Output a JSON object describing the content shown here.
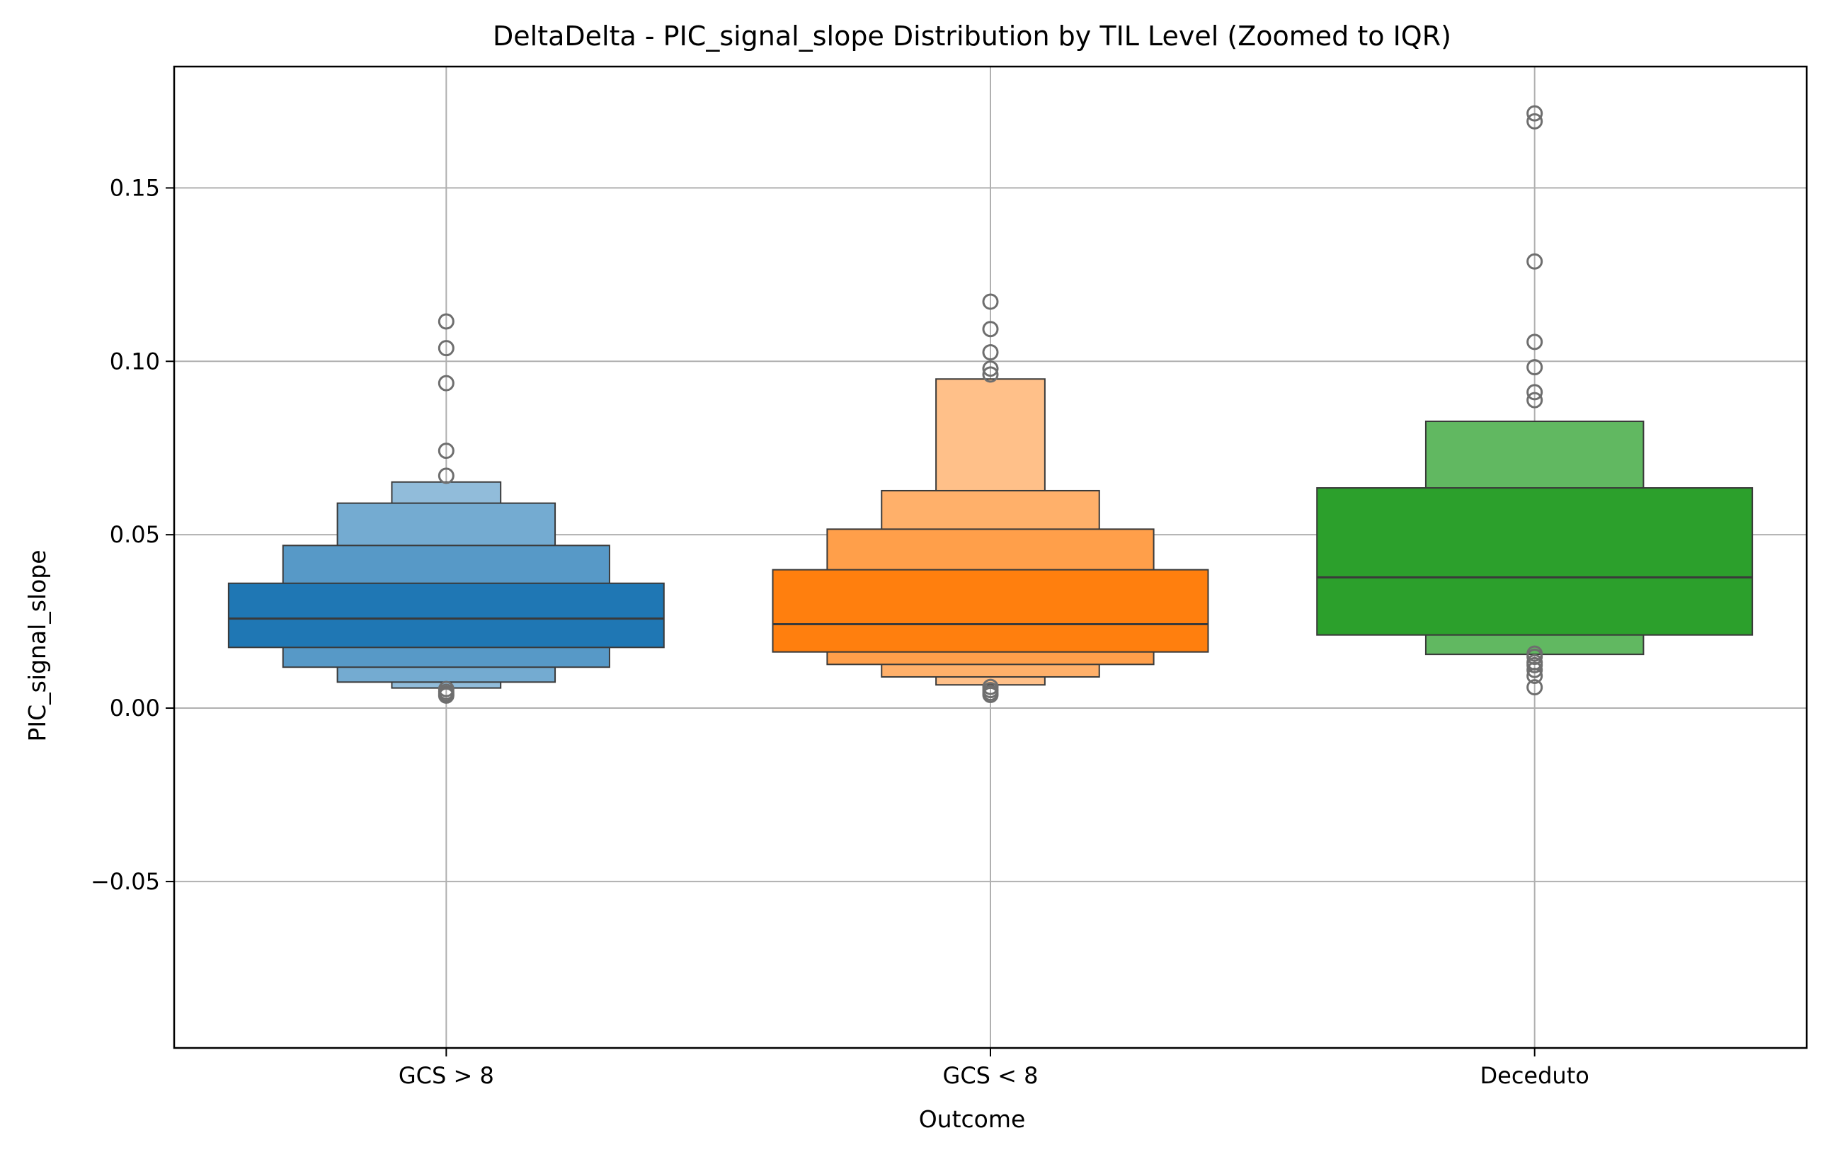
{
  "chart_data": {
    "type": "boxen",
    "title": "DeltaDelta - PIC_signal_slope Distribution by TIL Level (Zoomed to IQR)",
    "xlabel": "Outcome",
    "ylabel": "PIC_signal_slope",
    "ylim": [
      -0.098,
      0.185
    ],
    "yticks": [
      -0.05,
      0.0,
      0.05,
      0.1,
      0.15
    ],
    "ytick_labels": [
      "−0.05",
      "0.00",
      "0.05",
      "0.10",
      "0.15"
    ],
    "grid": true,
    "categories": [
      "GCS > 8",
      "GCS < 8",
      "Deceduto"
    ],
    "series": [
      {
        "category": "GCS > 8",
        "color": "#1f77b4",
        "median": 0.0258,
        "boxes": [
          {
            "low": 0.0175,
            "high": 0.036
          },
          {
            "low": 0.0118,
            "high": 0.0469
          },
          {
            "low": 0.0075,
            "high": 0.0591
          },
          {
            "low": 0.0058,
            "high": 0.0652
          }
        ],
        "outliers": [
          0.1115,
          0.1038,
          0.0937,
          0.0742,
          0.067,
          0.0055,
          0.0047,
          0.0041,
          0.0036
        ]
      },
      {
        "category": "GCS < 8",
        "color": "#ff7f0e",
        "median": 0.0242,
        "boxes": [
          {
            "low": 0.0162,
            "high": 0.0399
          },
          {
            "low": 0.0126,
            "high": 0.0516
          },
          {
            "low": 0.009,
            "high": 0.0627
          },
          {
            "low": 0.0067,
            "high": 0.0949
          }
        ],
        "outliers": [
          0.1172,
          0.1093,
          0.1026,
          0.0979,
          0.0962,
          0.0061,
          0.0052,
          0.0044,
          0.0038
        ]
      },
      {
        "category": "Deceduto",
        "color": "#2ca02c",
        "median": 0.0377,
        "boxes": [
          {
            "low": 0.0211,
            "high": 0.0635
          },
          {
            "low": 0.0155,
            "high": 0.0827
          }
        ],
        "outliers": [
          0.1715,
          0.1692,
          0.1288,
          0.1056,
          0.0983,
          0.0911,
          0.0888,
          0.0157,
          0.0148,
          0.0132,
          0.0124,
          0.011,
          0.0093,
          0.006
        ]
      }
    ]
  }
}
